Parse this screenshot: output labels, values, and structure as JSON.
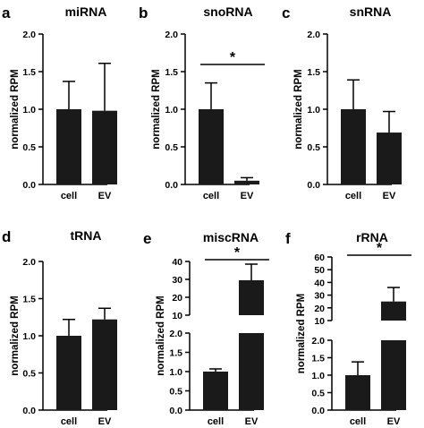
{
  "chart_data": [
    {
      "id": "a",
      "type": "bar",
      "panel_letter": "a",
      "title": "miRNA",
      "ylabel": "normalized RPM",
      "categories": [
        "cell",
        "EV"
      ],
      "values": [
        1.0,
        0.98
      ],
      "errors": [
        0.37,
        0.63
      ],
      "ylim": [
        0,
        2.0
      ],
      "yticks": [
        "0.0",
        "0.5",
        "1.0",
        "1.5",
        "2.0"
      ],
      "significance": ""
    },
    {
      "id": "b",
      "type": "bar",
      "panel_letter": "b",
      "title": "snoRNA",
      "ylabel": "normalized RPM",
      "categories": [
        "cell",
        "EV"
      ],
      "values": [
        1.0,
        0.05
      ],
      "errors": [
        0.35,
        0.04
      ],
      "ylim": [
        0,
        2.0
      ],
      "yticks": [
        "0.0",
        "0.5",
        "1.0",
        "1.5",
        "2.0"
      ],
      "significance": "*"
    },
    {
      "id": "c",
      "type": "bar",
      "panel_letter": "c",
      "title": "snRNA",
      "ylabel": "normalized RPM",
      "categories": [
        "cell",
        "EV"
      ],
      "values": [
        1.0,
        0.69
      ],
      "errors": [
        0.39,
        0.28
      ],
      "ylim": [
        0,
        2.0
      ],
      "yticks": [
        "0.0",
        "0.5",
        "1.0",
        "1.5",
        "2.0"
      ],
      "significance": ""
    },
    {
      "id": "d",
      "type": "bar",
      "panel_letter": "d",
      "title": "tRNA",
      "ylabel": "normalized RPM",
      "categories": [
        "cell",
        "EV"
      ],
      "values": [
        1.0,
        1.22
      ],
      "errors": [
        0.22,
        0.15
      ],
      "ylim": [
        0,
        2.0
      ],
      "yticks": [
        "0.0",
        "0.5",
        "1.0",
        "1.5",
        "2.0"
      ],
      "significance": ""
    },
    {
      "id": "e",
      "type": "bar",
      "panel_letter": "e",
      "title": "miscRNA",
      "ylabel": "normalized RPM",
      "categories": [
        "cell",
        "EV"
      ],
      "values": [
        1.0,
        29.5
      ],
      "errors": [
        0.07,
        9.0
      ],
      "broken_axis": true,
      "lower_ylim": [
        0,
        2.0
      ],
      "lower_yticks": [
        "0.0",
        "0.5",
        "1.0",
        "1.5",
        "2.0"
      ],
      "upper_ylim": [
        10,
        40
      ],
      "upper_yticks": [
        "10",
        "20",
        "30",
        "40"
      ],
      "significance": "*"
    },
    {
      "id": "f",
      "type": "bar",
      "panel_letter": "f",
      "title": "rRNA",
      "ylabel": "normalized RPM",
      "categories": [
        "cell",
        "EV"
      ],
      "values": [
        1.0,
        25.0
      ],
      "errors": [
        0.38,
        11.0
      ],
      "broken_axis": true,
      "lower_ylim": [
        0,
        2.0
      ],
      "lower_yticks": [
        "0.0",
        "0.5",
        "1.0",
        "1.5",
        "2.0"
      ],
      "upper_ylim": [
        10,
        60
      ],
      "upper_yticks": [
        "10",
        "20",
        "30",
        "40",
        "50",
        "60"
      ],
      "significance": "*"
    }
  ]
}
